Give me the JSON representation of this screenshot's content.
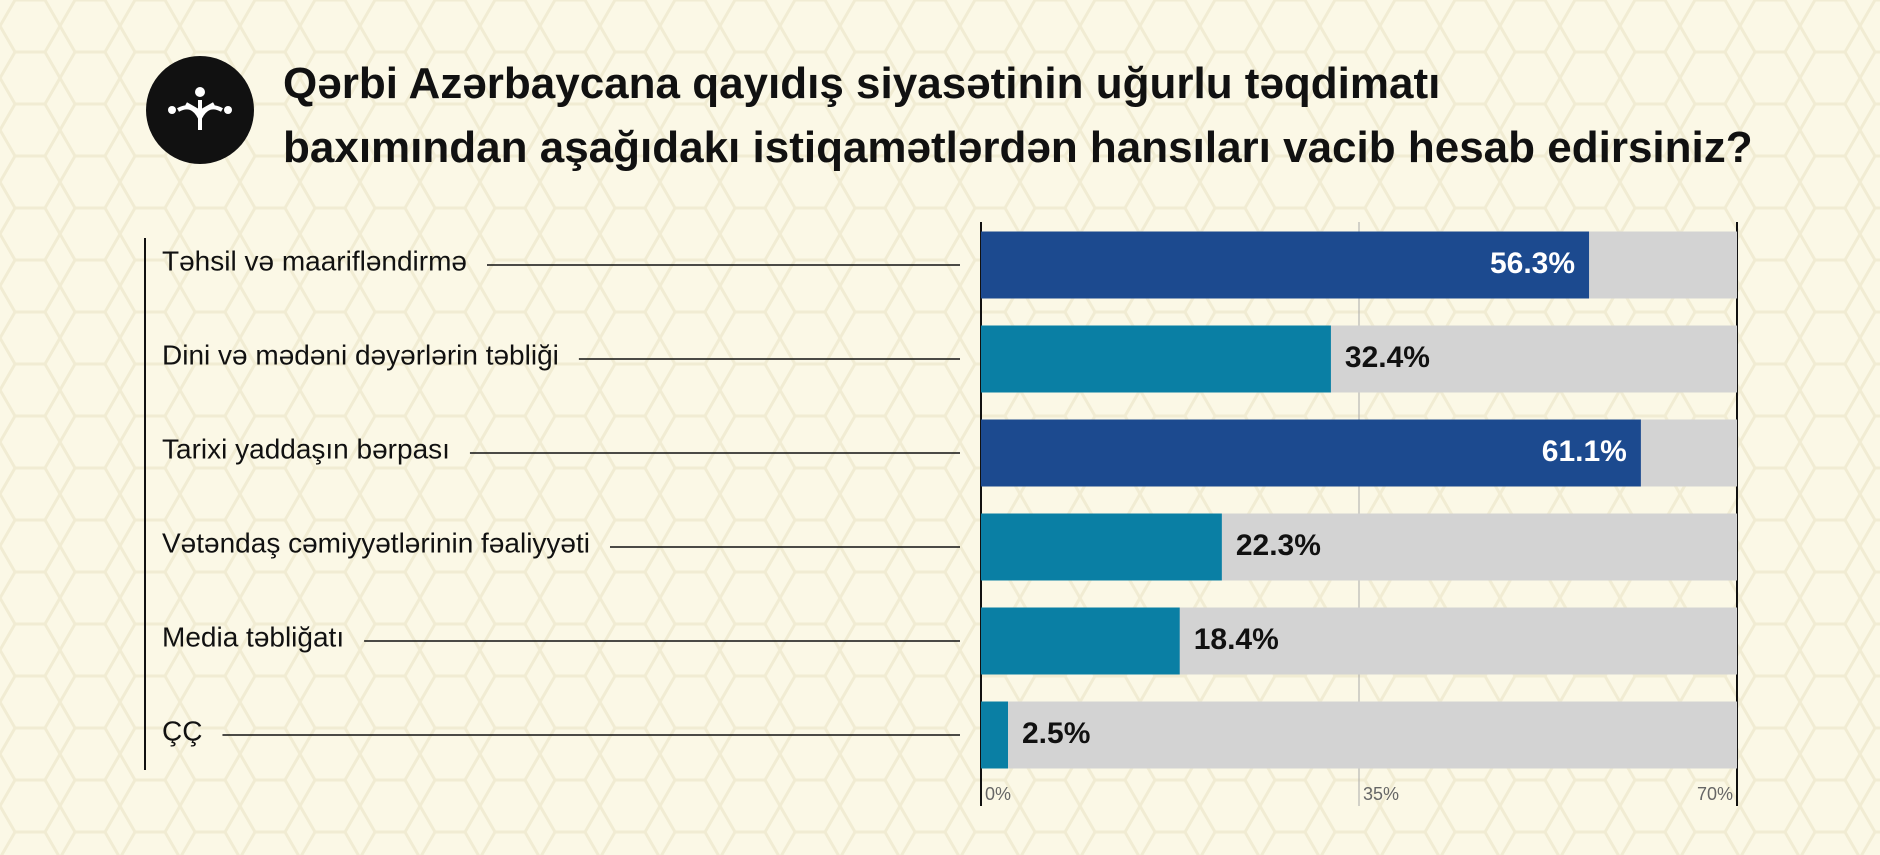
{
  "chart_data": {
    "type": "bar",
    "orientation": "horizontal",
    "title": "Qərbi Azərbaycana qayıdış siyasətinin uğurlu təqdimatı",
    "subtitle": "baxımından aşağıdakı istiqamətlərdən hansıları vacib hesab edirsiniz?",
    "categories": [
      "Təhsil və maarifləndirmə",
      "Dini və mədəni dəyərlərin təbliği",
      "Tarixi yaddaşın bərpası",
      "Vətəndaş cəmiyyətlərinin fəaliyyəti",
      "Media təbliğatı",
      "ÇÇ"
    ],
    "values": [
      56.3,
      32.4,
      61.1,
      22.3,
      18.4,
      2.5
    ],
    "value_labels": [
      "56.3%",
      "32.4%",
      "61.1%",
      "22.3%",
      "18.4%",
      "2.5%"
    ],
    "colors": [
      "#1c4a8f",
      "#0a7fa4",
      "#1c4a8f",
      "#0a7fa4",
      "#0a7fa4",
      "#0a7fa4"
    ],
    "track_color": "#d3d3d3",
    "xlim": [
      0,
      70
    ],
    "xticks": [
      {
        "value": 0,
        "label": "0%"
      },
      {
        "value": 35,
        "label": "35%"
      },
      {
        "value": 70,
        "label": "70%"
      }
    ],
    "grid": true
  }
}
